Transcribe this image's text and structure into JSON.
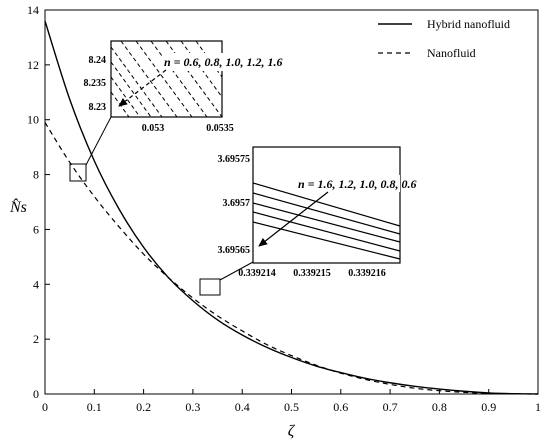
{
  "chart_data": {
    "type": "line",
    "xlabel": "ζ",
    "ylabel": "N̂s",
    "xlim": [
      0,
      1
    ],
    "ylim": [
      0,
      14
    ],
    "xticks": [
      "0",
      "0.1",
      "0.2",
      "0.3",
      "0.4",
      "0.5",
      "0.6",
      "0.7",
      "0.8",
      "0.9",
      "1"
    ],
    "yticks": [
      "0",
      "2",
      "4",
      "6",
      "8",
      "10",
      "12",
      "14"
    ],
    "legend_position": "top-right",
    "series": [
      {
        "name": "Hybrid nanofluid",
        "style": "solid",
        "x": [
          0,
          0.05,
          0.1,
          0.15,
          0.2,
          0.25,
          0.3,
          0.35,
          0.4,
          0.45,
          0.5,
          0.55,
          0.6,
          0.65,
          0.7,
          0.75,
          0.8,
          0.85,
          0.9,
          0.95,
          1.0
        ],
        "y": [
          13.6,
          10.75,
          8.5,
          6.75,
          5.35,
          4.25,
          3.4,
          2.7,
          2.15,
          1.7,
          1.33,
          1.02,
          0.78,
          0.57,
          0.41,
          0.28,
          0.18,
          0.1,
          0.04,
          0.01,
          0
        ]
      },
      {
        "name": "Nanofluid",
        "style": "dashed",
        "x": [
          0,
          0.05,
          0.1,
          0.15,
          0.2,
          0.25,
          0.3,
          0.35,
          0.4,
          0.45,
          0.5,
          0.55,
          0.6,
          0.65,
          0.7,
          0.75,
          0.8,
          0.85,
          0.9,
          0.95,
          1.0
        ],
        "y": [
          9.9,
          8.45,
          7.2,
          6.1,
          5.1,
          4.25,
          3.5,
          2.85,
          2.3,
          1.8,
          1.4,
          1.05,
          0.76,
          0.53,
          0.35,
          0.21,
          0.12,
          0.06,
          0.02,
          0.005,
          0
        ]
      }
    ],
    "insets": [
      {
        "xticks": [
          "0.053",
          "0.0535"
        ],
        "yticks": [
          "8.24",
          "8.235",
          "8.23"
        ],
        "annotation": "n = 0.6, 0.8, 1.0, 1.2, 1.6",
        "line_style": "dashed"
      },
      {
        "xticks": [
          "0.339214",
          "0.339215",
          "0.339216"
        ],
        "yticks": [
          "3.69575",
          "3.6957",
          "3.69565"
        ],
        "annotation": "n = 1.6, 1.2, 1.0, 0.8, 0.6",
        "line_style": "solid"
      }
    ]
  }
}
